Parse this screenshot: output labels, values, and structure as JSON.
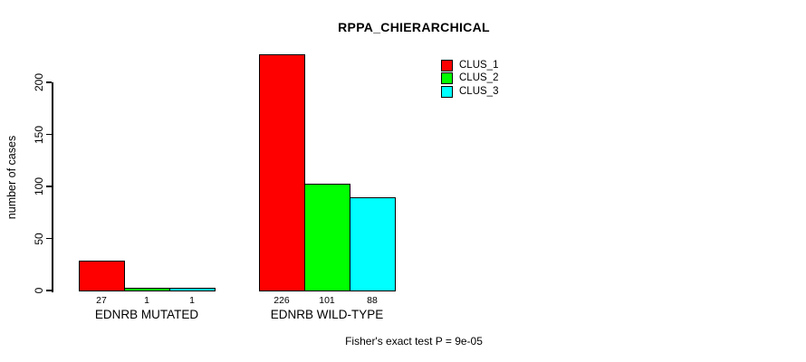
{
  "chart_data": {
    "type": "bar",
    "title": "RPPA_CHIERARCHICAL",
    "ylabel": "number of cases",
    "xlabel": "",
    "categories": [
      "EDNRB MUTATED",
      "EDNRB WILD-TYPE"
    ],
    "series": [
      {
        "name": "CLUS_1",
        "color": "#ff0000",
        "values": [
          27,
          226
        ]
      },
      {
        "name": "CLUS_2",
        "color": "#00ff00",
        "values": [
          1,
          101
        ]
      },
      {
        "name": "CLUS_3",
        "color": "#00ffff",
        "values": [
          1,
          88
        ]
      }
    ],
    "yticks": [
      0,
      50,
      100,
      150,
      200
    ],
    "ylim": [
      0,
      230
    ],
    "grid": false,
    "legend_position": "top-right",
    "value_labels_shown": true,
    "annotation": "Fisher's exact test P = 9e-05"
  }
}
